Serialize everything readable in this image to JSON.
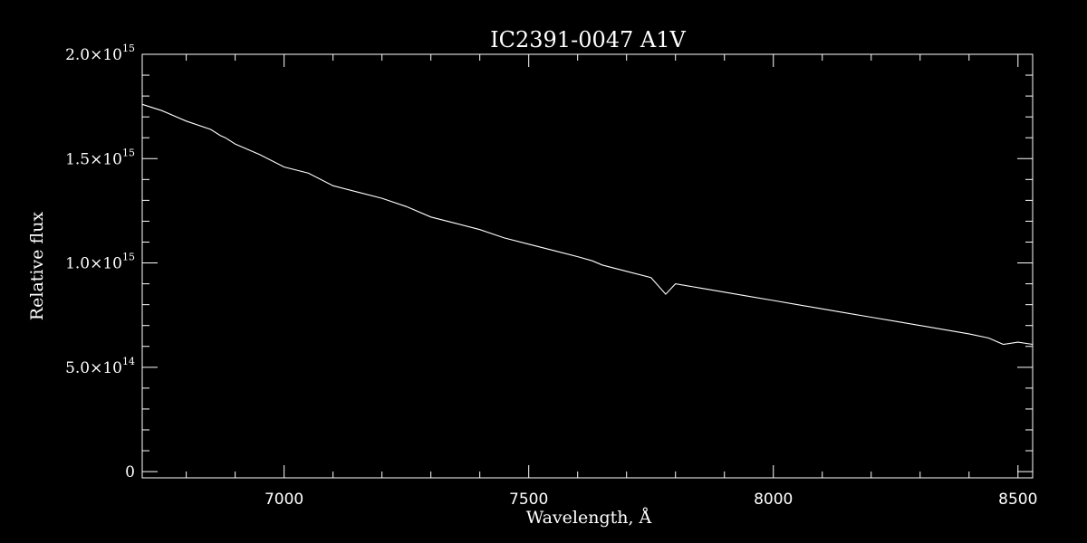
{
  "chart_data": {
    "type": "line",
    "title": "IC2391-0047  A1V",
    "xlabel": "Wavelength, Å",
    "ylabel": "Relative flux",
    "xlim": [
      6710,
      8530
    ],
    "ylim": [
      -30000000000000.0,
      2000000000000000.0
    ],
    "grid": false,
    "x_ticks": [
      {
        "value": 7000,
        "label": "7000"
      },
      {
        "value": 7500,
        "label": "7500"
      },
      {
        "value": 8000,
        "label": "8000"
      },
      {
        "value": 8500,
        "label": "8500"
      }
    ],
    "x_minor_step": 100,
    "y_ticks": [
      {
        "value": 0,
        "mant": "0",
        "exp": ""
      },
      {
        "value": 500000000000000.0,
        "mant": "5.0×10",
        "exp": "14"
      },
      {
        "value": 1000000000000000.0,
        "mant": "1.0×10",
        "exp": "15"
      },
      {
        "value": 1500000000000000.0,
        "mant": "1.5×10",
        "exp": "15"
      },
      {
        "value": 2000000000000000.0,
        "mant": "2.0×10",
        "exp": "15"
      }
    ],
    "y_minor_step": 100000000000000.0,
    "series": [
      {
        "x": [
          6710,
          6750,
          6800,
          6850,
          6870,
          6880,
          6900,
          6950,
          7000,
          7050,
          7100,
          7150,
          7200,
          7250,
          7300,
          7350,
          7400,
          7450,
          7500,
          7550,
          7600,
          7630,
          7650,
          7700,
          7750,
          7780,
          7800,
          7850,
          7900,
          7950,
          8000,
          8050,
          8100,
          8150,
          8200,
          8250,
          8300,
          8350,
          8400,
          8440,
          8470,
          8500,
          8530
        ],
        "y": [
          1760000000000000.0,
          1730000000000000.0,
          1680000000000000.0,
          1640000000000000.0,
          1610000000000000.0,
          1600000000000000.0,
          1570000000000000.0,
          1520000000000000.0,
          1460000000000000.0,
          1430000000000000.0,
          1370000000000000.0,
          1340000000000000.0,
          1310000000000000.0,
          1270000000000000.0,
          1220000000000000.0,
          1190000000000000.0,
          1160000000000000.0,
          1120000000000000.0,
          1090000000000000.0,
          1060000000000000.0,
          1030000000000000.0,
          1010000000000000.0,
          990000000000000.0,
          960000000000000.0,
          930000000000000.0,
          850000000000000.0,
          900000000000000.0,
          880000000000000.0,
          860000000000000.0,
          840000000000000.0,
          820000000000000.0,
          800000000000000.0,
          780000000000000.0,
          760000000000000.0,
          740000000000000.0,
          720000000000000.0,
          700000000000000.0,
          680000000000000.0,
          660000000000000.0,
          640000000000000.0,
          610000000000000.0,
          620000000000000.0,
          610000000000000.0
        ]
      }
    ]
  }
}
